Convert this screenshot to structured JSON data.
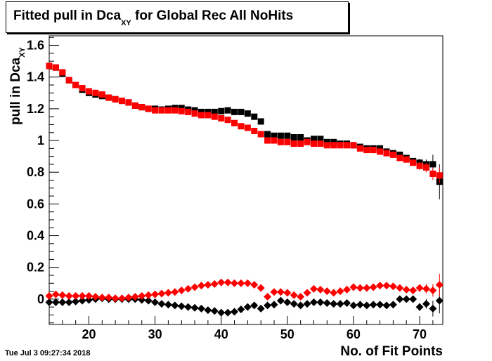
{
  "title": {
    "main": "Fitted pull in Dca",
    "sub": "XY",
    "rest": " for Global Rec All NoHits"
  },
  "ylabel": {
    "main": "pull in Dca",
    "sub": "XY"
  },
  "xlabel": "No. of Fit Points",
  "timestamp": "Tue Jul  3 09:27:34 2018",
  "colors": {
    "black_series": "#000000",
    "red_series": "#ff0000"
  },
  "chart_data": {
    "type": "scatter",
    "title": "Fitted pull in Dca_XY for Global Rec All NoHits",
    "xlabel": "No. of Fit Points",
    "ylabel": "pull in Dca_XY",
    "xlim": [
      14,
      73.5
    ],
    "ylim": [
      -0.16,
      1.66
    ],
    "x_ticks": [
      20,
      30,
      40,
      50,
      60,
      70
    ],
    "y_ticks": [
      0,
      0.2,
      0.4,
      0.6,
      0.8,
      1,
      1.2,
      1.4,
      1.6
    ],
    "x_tick_labels": [
      "20",
      "30",
      "40",
      "50",
      "60",
      "70"
    ],
    "y_tick_labels": [
      "0",
      "0.2",
      "0.4",
      "0.6",
      "0.8",
      "1",
      "1.2",
      "1.4",
      "1.6"
    ],
    "grid": false,
    "x": [
      14,
      15,
      16,
      17,
      18,
      19,
      20,
      21,
      22,
      23,
      24,
      25,
      26,
      27,
      28,
      29,
      30,
      31,
      32,
      33,
      34,
      35,
      36,
      37,
      38,
      39,
      40,
      41,
      42,
      43,
      44,
      45,
      46,
      47,
      48,
      49,
      50,
      51,
      52,
      53,
      54,
      55,
      56,
      57,
      58,
      59,
      60,
      61,
      62,
      63,
      64,
      65,
      66,
      67,
      68,
      69,
      70,
      71,
      72,
      73
    ],
    "series": [
      {
        "marker": "square",
        "color": "#000000",
        "values": [
          1.47,
          1.46,
          1.42,
          1.38,
          1.35,
          1.32,
          1.3,
          1.29,
          1.28,
          1.27,
          1.26,
          1.25,
          1.24,
          1.22,
          1.21,
          1.2,
          1.2,
          1.195,
          1.2,
          1.205,
          1.205,
          1.195,
          1.19,
          1.18,
          1.18,
          1.18,
          1.185,
          1.19,
          1.18,
          1.18,
          1.17,
          1.15,
          1.12,
          1.04,
          1.03,
          1.03,
          1.03,
          1.02,
          1.02,
          1.0,
          1.01,
          1.01,
          0.99,
          0.99,
          0.98,
          0.98,
          0.97,
          0.96,
          0.95,
          0.95,
          0.95,
          0.93,
          0.92,
          0.91,
          0.89,
          0.87,
          0.86,
          0.85,
          0.85,
          0.74
        ],
        "errors": [
          0.01,
          0.01,
          0.01,
          0.01,
          0.01,
          0.01,
          0.01,
          0.01,
          0.01,
          0.01,
          0.01,
          0.01,
          0.01,
          0.01,
          0.01,
          0.01,
          0.01,
          0.01,
          0.01,
          0.01,
          0.01,
          0.01,
          0.01,
          0.01,
          0.01,
          0.01,
          0.01,
          0.01,
          0.01,
          0.01,
          0.01,
          0.01,
          0.01,
          0.01,
          0.01,
          0.01,
          0.01,
          0.01,
          0.01,
          0.01,
          0.01,
          0.01,
          0.01,
          0.01,
          0.01,
          0.01,
          0.01,
          0.01,
          0.01,
          0.01,
          0.01,
          0.015,
          0.015,
          0.015,
          0.02,
          0.02,
          0.025,
          0.03,
          0.06,
          0.11
        ]
      },
      {
        "marker": "square",
        "color": "#ff0000",
        "values": [
          1.47,
          1.46,
          1.43,
          1.38,
          1.35,
          1.33,
          1.31,
          1.3,
          1.29,
          1.27,
          1.26,
          1.25,
          1.24,
          1.22,
          1.21,
          1.2,
          1.19,
          1.19,
          1.19,
          1.19,
          1.185,
          1.18,
          1.17,
          1.16,
          1.16,
          1.15,
          1.14,
          1.13,
          1.11,
          1.09,
          1.08,
          1.06,
          1.04,
          1.0,
          1.0,
          0.99,
          0.99,
          0.98,
          0.98,
          0.99,
          0.98,
          0.98,
          0.97,
          0.97,
          0.97,
          0.97,
          0.97,
          0.95,
          0.94,
          0.94,
          0.93,
          0.92,
          0.91,
          0.89,
          0.88,
          0.86,
          0.84,
          0.83,
          0.79,
          0.78
        ],
        "errors": [
          0.01,
          0.01,
          0.01,
          0.01,
          0.01,
          0.01,
          0.01,
          0.01,
          0.01,
          0.01,
          0.01,
          0.01,
          0.01,
          0.01,
          0.01,
          0.01,
          0.01,
          0.01,
          0.01,
          0.01,
          0.01,
          0.01,
          0.01,
          0.01,
          0.01,
          0.01,
          0.01,
          0.01,
          0.01,
          0.01,
          0.01,
          0.01,
          0.01,
          0.01,
          0.01,
          0.01,
          0.01,
          0.01,
          0.01,
          0.01,
          0.01,
          0.01,
          0.01,
          0.01,
          0.01,
          0.01,
          0.01,
          0.01,
          0.01,
          0.01,
          0.01,
          0.015,
          0.015,
          0.015,
          0.02,
          0.02,
          0.025,
          0.03,
          0.04,
          0.05
        ]
      },
      {
        "marker": "diamond",
        "color": "#000000",
        "values": [
          -0.02,
          -0.02,
          -0.02,
          -0.02,
          -0.015,
          -0.01,
          -0.005,
          0.0,
          0.005,
          0.0,
          0.0,
          0.0,
          0.0,
          0.0,
          -0.005,
          -0.01,
          -0.02,
          -0.03,
          -0.035,
          -0.04,
          -0.045,
          -0.05,
          -0.055,
          -0.06,
          -0.07,
          -0.075,
          -0.085,
          -0.085,
          -0.08,
          -0.065,
          -0.05,
          -0.04,
          -0.06,
          -0.04,
          -0.035,
          -0.01,
          -0.02,
          -0.03,
          -0.04,
          -0.03,
          -0.02,
          -0.02,
          -0.025,
          -0.03,
          -0.03,
          -0.025,
          -0.04,
          -0.035,
          -0.04,
          -0.035,
          -0.035,
          -0.04,
          -0.035,
          0.0,
          0.0,
          0.0,
          -0.05,
          -0.03,
          -0.06,
          -0.01
        ],
        "errors": [
          0.03,
          0.01,
          0.01,
          0.01,
          0.01,
          0.01,
          0.01,
          0.01,
          0.01,
          0.01,
          0.01,
          0.01,
          0.01,
          0.01,
          0.01,
          0.01,
          0.01,
          0.01,
          0.01,
          0.01,
          0.01,
          0.01,
          0.01,
          0.01,
          0.01,
          0.01,
          0.01,
          0.01,
          0.01,
          0.01,
          0.01,
          0.01,
          0.01,
          0.01,
          0.01,
          0.01,
          0.01,
          0.01,
          0.01,
          0.01,
          0.01,
          0.01,
          0.01,
          0.01,
          0.01,
          0.01,
          0.01,
          0.01,
          0.01,
          0.01,
          0.01,
          0.015,
          0.015,
          0.015,
          0.02,
          0.02,
          0.025,
          0.03,
          0.05,
          0.08
        ]
      },
      {
        "marker": "diamond",
        "color": "#ff0000",
        "values": [
          0.02,
          0.03,
          0.025,
          0.02,
          0.02,
          0.02,
          0.02,
          0.015,
          0.01,
          0.01,
          0.005,
          0.005,
          0.01,
          0.015,
          0.02,
          0.025,
          0.03,
          0.035,
          0.04,
          0.045,
          0.055,
          0.065,
          0.075,
          0.085,
          0.09,
          0.095,
          0.105,
          0.105,
          0.1,
          0.1,
          0.1,
          0.09,
          0.07,
          0.015,
          0.045,
          0.045,
          0.04,
          0.025,
          0.015,
          0.04,
          0.065,
          0.06,
          0.05,
          0.04,
          0.05,
          0.06,
          0.075,
          0.07,
          0.07,
          0.075,
          0.085,
          0.085,
          0.08,
          0.07,
          0.06,
          0.055,
          0.07,
          0.065,
          0.055,
          0.09
        ],
        "errors": [
          0.01,
          0.01,
          0.01,
          0.01,
          0.01,
          0.01,
          0.01,
          0.01,
          0.01,
          0.01,
          0.01,
          0.01,
          0.01,
          0.01,
          0.01,
          0.01,
          0.01,
          0.01,
          0.01,
          0.01,
          0.01,
          0.01,
          0.01,
          0.01,
          0.01,
          0.01,
          0.01,
          0.01,
          0.01,
          0.01,
          0.01,
          0.01,
          0.01,
          0.01,
          0.01,
          0.01,
          0.01,
          0.01,
          0.01,
          0.01,
          0.01,
          0.01,
          0.01,
          0.01,
          0.01,
          0.01,
          0.01,
          0.01,
          0.01,
          0.01,
          0.01,
          0.015,
          0.015,
          0.015,
          0.02,
          0.02,
          0.025,
          0.03,
          0.04,
          0.07
        ]
      }
    ]
  }
}
